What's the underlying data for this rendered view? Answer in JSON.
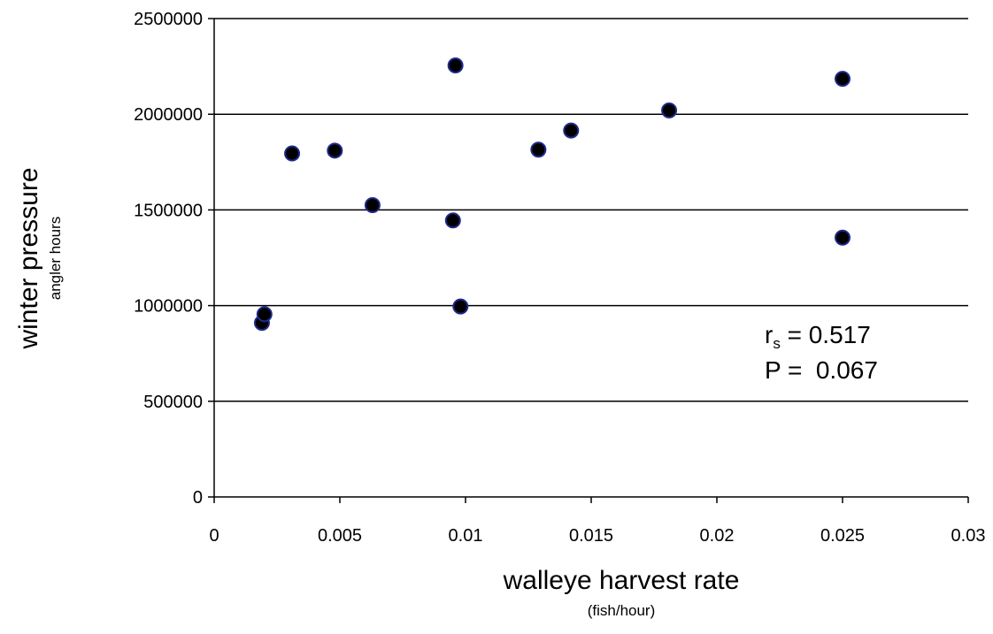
{
  "chart_data": {
    "type": "scatter",
    "xlabel": "walleye harvest rate",
    "xlabel_unit": "(fish/hour)",
    "ylabel": "winter pressure",
    "ylabel_unit": "angler hours",
    "xlim": [
      0,
      0.03
    ],
    "ylim": [
      0,
      2500000
    ],
    "x_ticks": [
      0,
      0.005,
      0.01,
      0.015,
      0.02,
      0.025,
      0.03
    ],
    "x_tick_labels": [
      "0",
      "0.005",
      "0.01",
      "0.015",
      "0.02",
      "0.025",
      "0.03"
    ],
    "y_ticks": [
      0,
      500000,
      1000000,
      1500000,
      2000000,
      2500000
    ],
    "y_tick_labels": [
      "0",
      "500000",
      "1000000",
      "1500000",
      "2000000",
      "2500000"
    ],
    "grid": "horizontal",
    "marker_color": "#000000",
    "marker_edge_color": "#1f2a8c",
    "points": [
      {
        "x": 0.0019,
        "y": 910000
      },
      {
        "x": 0.002,
        "y": 955000
      },
      {
        "x": 0.0031,
        "y": 1795000
      },
      {
        "x": 0.0048,
        "y": 1810000
      },
      {
        "x": 0.0063,
        "y": 1525000
      },
      {
        "x": 0.0095,
        "y": 1445000
      },
      {
        "x": 0.0096,
        "y": 2255000
      },
      {
        "x": 0.0098,
        "y": 995000
      },
      {
        "x": 0.0129,
        "y": 1815000
      },
      {
        "x": 0.0142,
        "y": 1915000
      },
      {
        "x": 0.0181,
        "y": 2020000
      },
      {
        "x": 0.025,
        "y": 2185000
      },
      {
        "x": 0.025,
        "y": 1355000
      }
    ],
    "annotations": {
      "rs_symbol": "r",
      "rs_subscript": "s",
      "rs_value": " = 0.517",
      "p_text": "P =  0.067"
    }
  }
}
